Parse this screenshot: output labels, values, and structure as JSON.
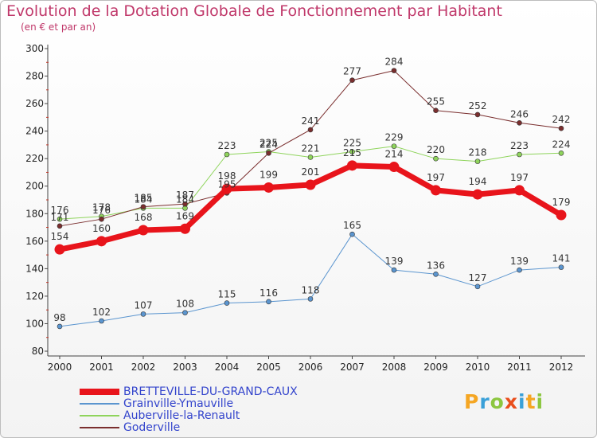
{
  "header": {
    "title": "Evolution de la Dotation Globale de Fonctionnement par Habitant",
    "subtitle": "(en € et par an)"
  },
  "logo": {
    "text": "Proxiti"
  },
  "chart_data": {
    "type": "line",
    "title": "Evolution de la Dotation Globale de Fonctionnement par Habitant",
    "subtitle": "(en € et par an)",
    "xlabel": "",
    "ylabel": "",
    "x": [
      "2000",
      "2001",
      "2002",
      "2003",
      "2004",
      "2005",
      "2006",
      "2007",
      "2008",
      "2009",
      "2010",
      "2011",
      "2012"
    ],
    "ylim": [
      80,
      300
    ],
    "yticks": [
      80,
      100,
      120,
      140,
      160,
      180,
      200,
      220,
      240,
      260,
      280,
      300
    ],
    "grid": false,
    "legend_position": "bottom",
    "series": [
      {
        "name": "BRETTEVILLE-DU-GRAND-CAUX",
        "color": "#e8141b",
        "emphasis": true,
        "values": [
          154,
          160,
          168,
          169,
          198,
          199,
          201,
          215,
          214,
          197,
          194,
          197,
          179
        ]
      },
      {
        "name": "Grainville-Ymauville",
        "color": "#5b95cf",
        "values": [
          98,
          102,
          107,
          108,
          115,
          116,
          118,
          165,
          139,
          136,
          127,
          139,
          141
        ]
      },
      {
        "name": "Auberville-la-Renault",
        "color": "#8fd45c",
        "values": [
          176,
          178,
          184,
          184,
          223,
          225,
          221,
          225,
          229,
          220,
          218,
          223,
          224
        ]
      },
      {
        "name": "Goderville",
        "color": "#7a2e2e",
        "values": [
          171,
          176,
          185,
          187,
          195,
          224,
          241,
          277,
          284,
          255,
          252,
          246,
          242
        ]
      }
    ]
  }
}
